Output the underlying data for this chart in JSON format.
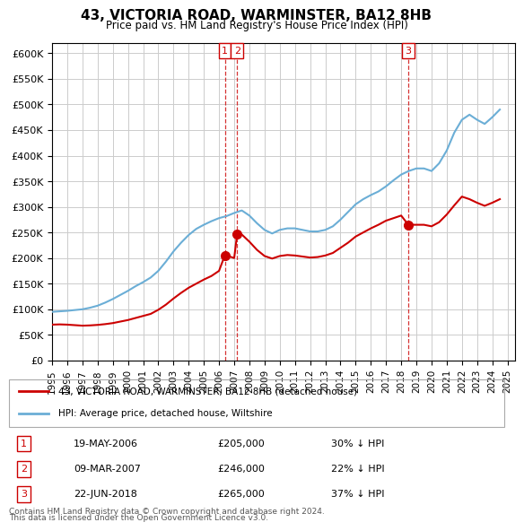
{
  "title": "43, VICTORIA ROAD, WARMINSTER, BA12 8HB",
  "subtitle": "Price paid vs. HM Land Registry's House Price Index (HPI)",
  "legend_line1": "43, VICTORIA ROAD, WARMINSTER, BA12 8HB (detached house)",
  "legend_line2": "HPI: Average price, detached house, Wiltshire",
  "footer1": "Contains HM Land Registry data © Crown copyright and database right 2024.",
  "footer2": "This data is licensed under the Open Government Licence v3.0.",
  "transactions": [
    {
      "num": 1,
      "date": "19-MAY-2006",
      "price": "£205,000",
      "pct": "30% ↓ HPI",
      "x": 2006.38
    },
    {
      "num": 2,
      "date": "09-MAR-2007",
      "price": "£246,000",
      "pct": "22% ↓ HPI",
      "x": 2007.19
    },
    {
      "num": 3,
      "date": "22-JUN-2018",
      "price": "£265,000",
      "pct": "37% ↓ HPI",
      "x": 2018.47
    }
  ],
  "hpi_color": "#6baed6",
  "price_color": "#cc0000",
  "dashed_line_color": "#cc0000",
  "background_color": "#ffffff",
  "grid_color": "#cccccc",
  "ylim": [
    0,
    620000
  ],
  "xlim_start": 1995,
  "xlim_end": 2025.5,
  "hpi_x": [
    1995,
    1995.5,
    1996,
    1996.5,
    1997,
    1997.5,
    1998,
    1998.5,
    1999,
    1999.5,
    2000,
    2000.5,
    2001,
    2001.5,
    2002,
    2002.5,
    2003,
    2003.5,
    2004,
    2004.5,
    2005,
    2005.5,
    2006,
    2006.5,
    2007,
    2007.5,
    2008,
    2008.5,
    2009,
    2009.5,
    2010,
    2010.5,
    2011,
    2011.5,
    2012,
    2012.5,
    2013,
    2013.5,
    2014,
    2014.5,
    2015,
    2015.5,
    2016,
    2016.5,
    2017,
    2017.5,
    2018,
    2018.5,
    2019,
    2019.5,
    2020,
    2020.5,
    2021,
    2021.5,
    2022,
    2022.5,
    2023,
    2023.5,
    2024,
    2024.5
  ],
  "hpi_y": [
    95000,
    96000,
    97000,
    98500,
    100000,
    103000,
    107000,
    113000,
    120000,
    128000,
    136000,
    145000,
    153000,
    162000,
    175000,
    193000,
    213000,
    230000,
    245000,
    257000,
    265000,
    272000,
    278000,
    282000,
    288000,
    293000,
    283000,
    268000,
    255000,
    248000,
    255000,
    258000,
    258000,
    255000,
    252000,
    252000,
    255000,
    262000,
    275000,
    290000,
    305000,
    315000,
    323000,
    330000,
    340000,
    352000,
    363000,
    370000,
    375000,
    375000,
    370000,
    385000,
    410000,
    445000,
    470000,
    480000,
    470000,
    462000,
    475000,
    490000
  ],
  "price_x": [
    1995,
    1995.5,
    1996,
    1996.5,
    1997,
    1997.5,
    1998,
    1998.5,
    1999,
    1999.5,
    2000,
    2000.5,
    2001,
    2001.5,
    2002,
    2002.5,
    2003,
    2003.5,
    2004,
    2004.5,
    2005,
    2005.5,
    2006,
    2006.38,
    2006.5,
    2007,
    2007.19,
    2007.5,
    2008,
    2008.5,
    2009,
    2009.5,
    2010,
    2010.5,
    2011,
    2011.5,
    2012,
    2012.5,
    2013,
    2013.5,
    2014,
    2014.5,
    2015,
    2015.5,
    2016,
    2016.5,
    2017,
    2017.5,
    2018,
    2018.47,
    2018.5,
    2019,
    2019.5,
    2020,
    2020.5,
    2021,
    2021.5,
    2022,
    2022.5,
    2023,
    2023.5,
    2024,
    2024.5
  ],
  "price_y": [
    70000,
    70500,
    70000,
    69000,
    68000,
    68500,
    69500,
    71000,
    73000,
    76000,
    79000,
    83000,
    87000,
    91000,
    99000,
    109000,
    121000,
    132000,
    142000,
    150000,
    158000,
    165000,
    175000,
    205000,
    205000,
    200000,
    246000,
    246000,
    232000,
    216000,
    204000,
    199000,
    204000,
    206000,
    205000,
    203000,
    201000,
    202000,
    205000,
    210000,
    220000,
    230000,
    242000,
    250000,
    258000,
    265000,
    273000,
    278000,
    283000,
    265000,
    265000,
    265000,
    265000,
    262000,
    270000,
    285000,
    303000,
    320000,
    315000,
    308000,
    302000,
    308000,
    315000
  ]
}
